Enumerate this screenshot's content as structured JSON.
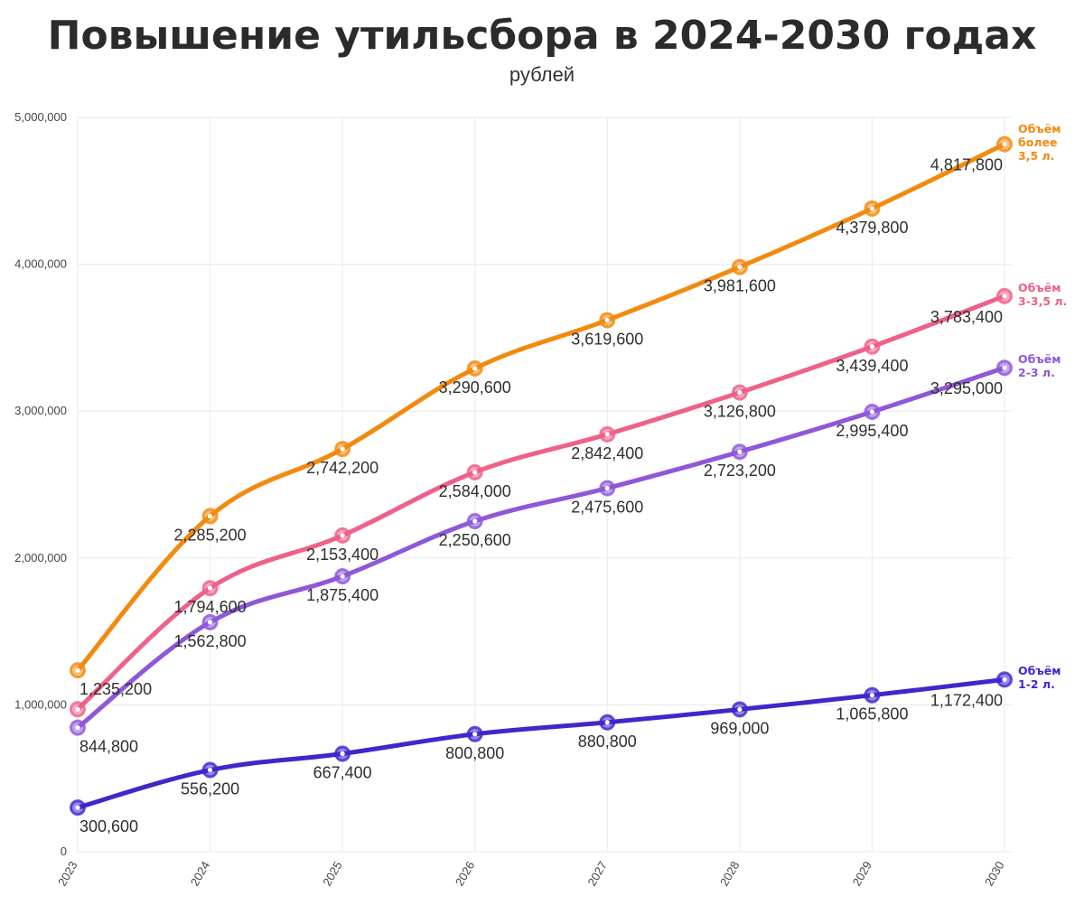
{
  "colors": {
    "orange": "#F28A0F",
    "pink": "#EE6188",
    "purple": "#8F57D9",
    "indigo": "#3F27CC"
  },
  "chart_data": {
    "type": "line",
    "title": "Повышение утильсбора в 2024-2030 годах",
    "subtitle": "рублей",
    "xlabel": "",
    "ylabel": "",
    "x": [
      "2023",
      "2024",
      "2025",
      "2026",
      "2027",
      "2028",
      "2029",
      "2030"
    ],
    "ylim": [
      0,
      5000000
    ],
    "yticks": [
      0,
      1000000,
      2000000,
      3000000,
      4000000,
      5000000
    ],
    "ytick_labels": [
      "0",
      "1,000,000",
      "2,000,000",
      "3,000,000",
      "4,000,000",
      "5,000,000"
    ],
    "grid": true,
    "legend_placement": "right-end-labels",
    "series": [
      {
        "key": "orange",
        "legend": [
          "Объём",
          "более",
          "3,5 л."
        ],
        "color": "#F28A0F",
        "values": [
          1235200,
          2285200,
          2742200,
          3290600,
          3619600,
          3981600,
          4379800,
          4817800
        ],
        "labels": [
          "1,235,200",
          "2,285,200",
          "2,742,200",
          "3,290,600",
          "3,619,600",
          "3,981,600",
          "4,379,800",
          "4,817,800"
        ]
      },
      {
        "key": "pink",
        "legend": [
          "Объём",
          "3-3,5 л."
        ],
        "color": "#EE6188",
        "values": [
          970000,
          1794600,
          2153400,
          2584000,
          2842400,
          3126800,
          3439400,
          3783400
        ],
        "labels": [
          "",
          "1,794,600",
          "2,153,400",
          "2,584,000",
          "2,842,400",
          "3,126,800",
          "3,439,400",
          "3,783,400"
        ]
      },
      {
        "key": "purple",
        "legend": [
          "Объём",
          "2-3 л."
        ],
        "color": "#8F57D9",
        "values": [
          844800,
          1562800,
          1875400,
          2250600,
          2475600,
          2723200,
          2995400,
          3295000
        ],
        "labels": [
          "844,800",
          "1,562,800",
          "1,875,400",
          "2,250,600",
          "2,475,600",
          "2,723,200",
          "2,995,400",
          "3,295,000"
        ]
      },
      {
        "key": "indigo",
        "legend": [
          "Объём",
          "1-2 л."
        ],
        "color": "#3F27CC",
        "values": [
          300600,
          556200,
          667400,
          800800,
          880800,
          969000,
          1065800,
          1172400
        ],
        "labels": [
          "300,600",
          "556,200",
          "667,400",
          "800,800",
          "880,800",
          "969,000",
          "1,065,800",
          "1,172,400"
        ]
      }
    ]
  }
}
